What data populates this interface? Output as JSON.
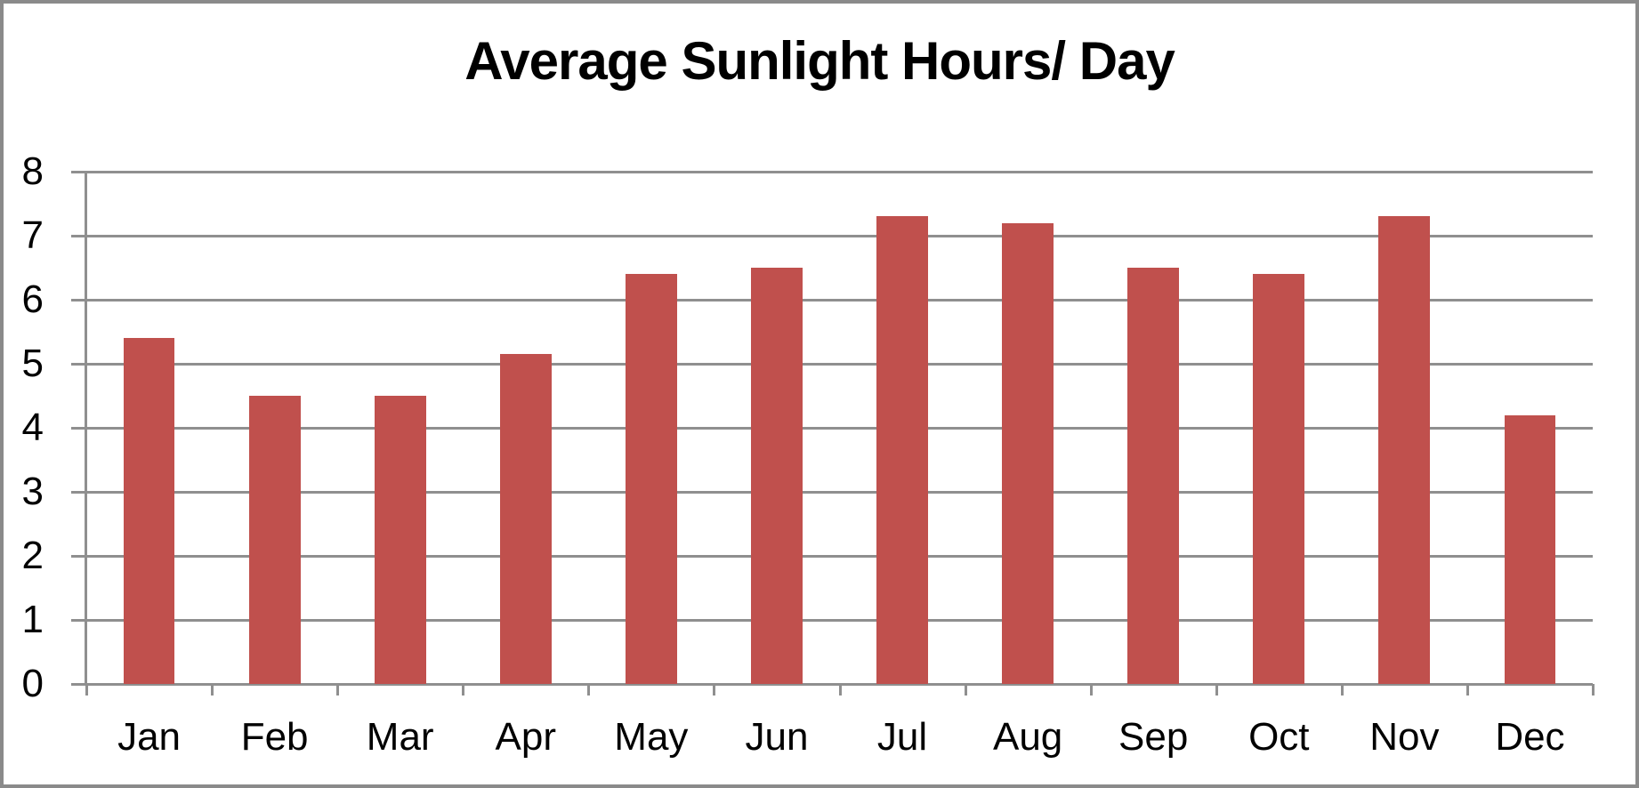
{
  "window": {
    "background": "#FFFFFF",
    "border_color": "#8A8A8A"
  },
  "chart_data": {
    "type": "bar",
    "title": "Average Sunlight Hours/ Day",
    "categories": [
      "Jan",
      "Feb",
      "Mar",
      "Apr",
      "May",
      "Jun",
      "Jul",
      "Aug",
      "Sep",
      "Oct",
      "Nov",
      "Dec"
    ],
    "values": [
      5.4,
      4.5,
      4.5,
      5.15,
      6.4,
      6.5,
      7.3,
      7.2,
      6.5,
      6.4,
      7.3,
      4.2
    ],
    "series_name": "Average Sunlight Hours/ Day",
    "xlabel": "",
    "ylabel": "",
    "ylim": [
      0,
      8
    ],
    "yticks": [
      0,
      1,
      2,
      3,
      4,
      5,
      6,
      7,
      8
    ],
    "grid": true,
    "legend_visible": false,
    "bar_color": "#C0504D",
    "grid_color": "#8F8F8F",
    "axis_color": "#8F8F8F",
    "text_color": "#000000",
    "bar_width_fraction": 0.41
  }
}
